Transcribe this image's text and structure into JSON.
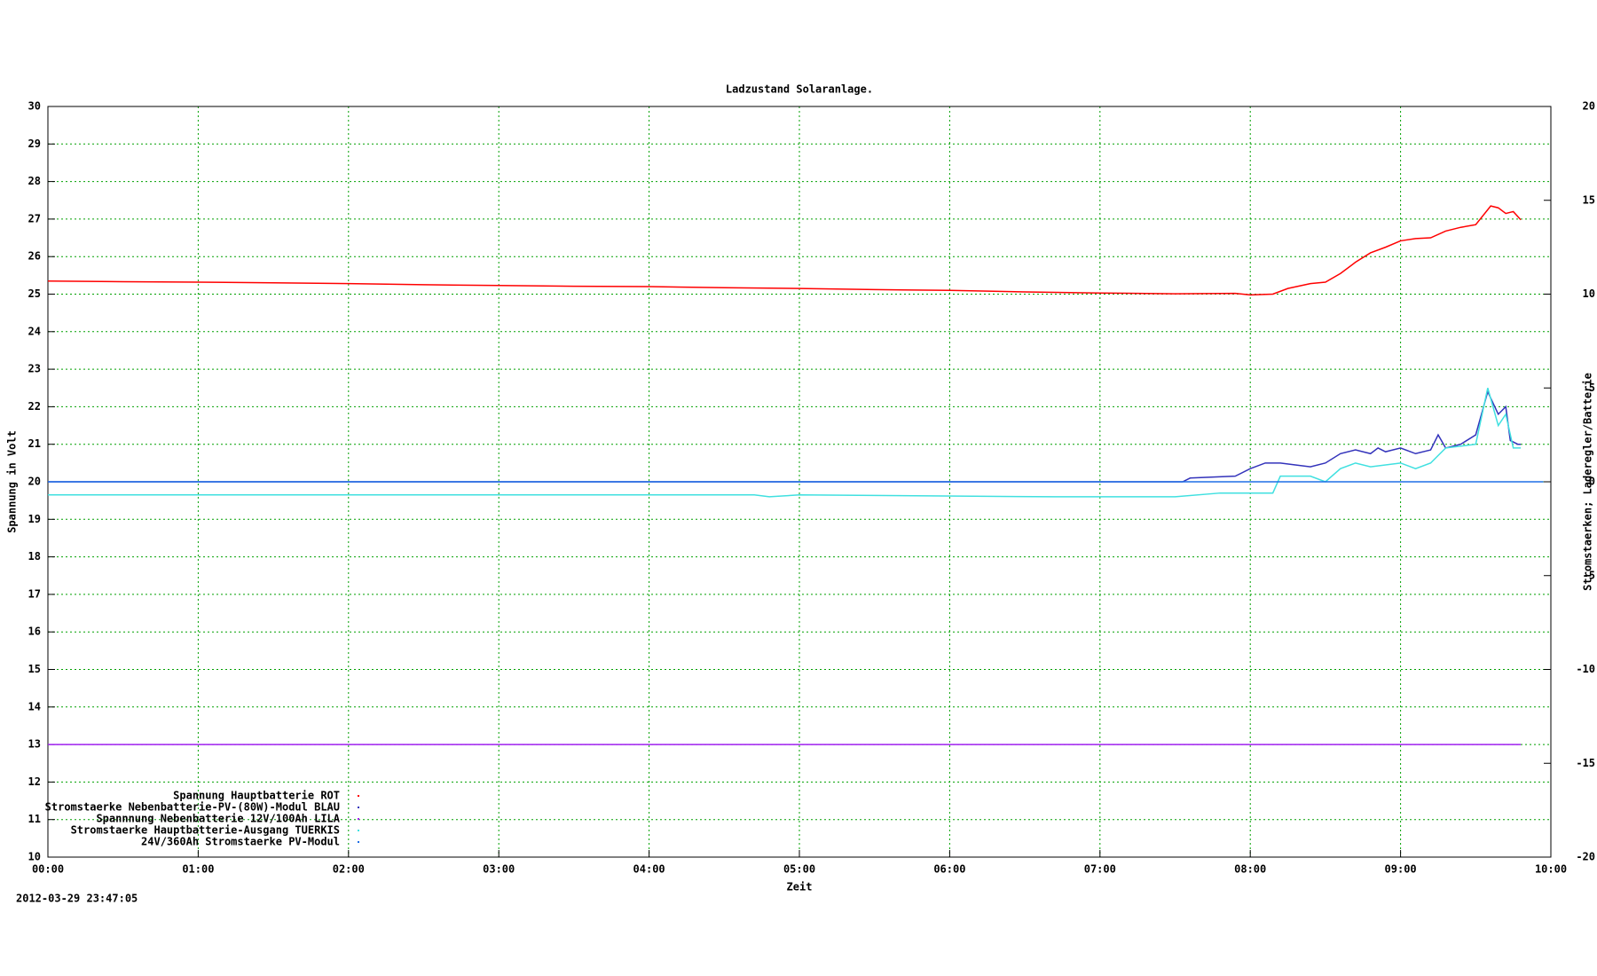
{
  "chart_data": {
    "type": "line",
    "title": "Ladzustand Solaranlage.",
    "xlabel": "Zeit",
    "ylabel": "Spannung in Volt",
    "y2label": "Stromstaerken; Laderegler/Batterie",
    "timestamp": "2012-03-29 23:47:05",
    "xlim": [
      0,
      10
    ],
    "xticks": [
      {
        "value": 0,
        "label": "00:00"
      },
      {
        "value": 1,
        "label": "01:00"
      },
      {
        "value": 2,
        "label": "02:00"
      },
      {
        "value": 3,
        "label": "03:00"
      },
      {
        "value": 4,
        "label": "04:00"
      },
      {
        "value": 5,
        "label": "05:00"
      },
      {
        "value": 6,
        "label": "06:00"
      },
      {
        "value": 7,
        "label": "07:00"
      },
      {
        "value": 8,
        "label": "08:00"
      },
      {
        "value": 9,
        "label": "09:00"
      },
      {
        "value": 10,
        "label": "10:00"
      }
    ],
    "ylim": [
      10,
      30
    ],
    "yticks": [
      10,
      11,
      12,
      13,
      14,
      15,
      16,
      17,
      18,
      19,
      20,
      21,
      22,
      23,
      24,
      25,
      26,
      27,
      28,
      29,
      30
    ],
    "y2lim": [
      -20,
      20
    ],
    "y2ticks": [
      -20,
      -15,
      -10,
      -5,
      0,
      5,
      10,
      15,
      20
    ],
    "grid": true,
    "legend": "bottom-left",
    "series": [
      {
        "name": "Spannung Hauptbatterie ROT",
        "color": "#ff0000",
        "x": [
          0,
          0.5,
          1,
          1.5,
          2,
          2.5,
          3,
          3.5,
          4,
          4.5,
          5,
          5.5,
          6,
          6.5,
          7,
          7.5,
          7.9,
          8,
          8.15,
          8.25,
          8.4,
          8.5,
          8.6,
          8.7,
          8.8,
          8.9,
          9,
          9.1,
          9.2,
          9.3,
          9.4,
          9.5,
          9.6,
          9.65,
          9.7,
          9.75,
          9.8
        ],
        "values": [
          25.35,
          25.33,
          25.32,
          25.3,
          25.28,
          25.25,
          25.23,
          25.21,
          25.2,
          25.17,
          25.15,
          25.12,
          25.1,
          25.06,
          25.03,
          25.01,
          25.02,
          24.98,
          25.0,
          25.15,
          25.28,
          25.32,
          25.55,
          25.85,
          26.1,
          26.25,
          26.42,
          26.48,
          26.5,
          26.68,
          26.78,
          26.85,
          27.35,
          27.3,
          27.15,
          27.2,
          26.98
        ]
      },
      {
        "name": "Stromstaerke Nebenbatterie-PV-(80W)-Modul BLAU",
        "color": "#3333bb",
        "axis": "y2",
        "x": [
          0,
          7.55,
          7.6,
          7.9,
          8.0,
          8.1,
          8.2,
          8.3,
          8.4,
          8.5,
          8.6,
          8.7,
          8.8,
          8.85,
          8.9,
          9.0,
          9.1,
          9.2,
          9.25,
          9.3,
          9.4,
          9.5,
          9.58,
          9.65,
          9.7,
          9.73,
          9.78,
          9.8
        ],
        "values": [
          0,
          0,
          0.2,
          0.3,
          0.7,
          1.0,
          1.0,
          0.9,
          0.8,
          1.0,
          1.5,
          1.7,
          1.5,
          1.8,
          1.6,
          1.8,
          1.5,
          1.7,
          2.5,
          1.8,
          2.0,
          2.5,
          4.8,
          3.6,
          4.0,
          2.2,
          2.0,
          2.0
        ]
      },
      {
        "name": "Spannnung Nebenbatterie 12V/100Ah LILA",
        "color": "#a020f0",
        "x": [
          0,
          9.8
        ],
        "values": [
          13.0,
          13.0
        ]
      },
      {
        "name": "Stromstaerke Hauptbatterie-Ausgang TUERKIS",
        "color": "#40e0e0",
        "axis": "y2",
        "x": [
          0,
          4.7,
          4.8,
          5.0,
          6.7,
          7.5,
          7.8,
          8.15,
          8.2,
          8.4,
          8.5,
          8.6,
          8.7,
          8.8,
          9.0,
          9.1,
          9.2,
          9.3,
          9.5,
          9.58,
          9.65,
          9.7,
          9.75,
          9.8
        ],
        "values": [
          -0.7,
          -0.7,
          -0.8,
          -0.7,
          -0.8,
          -0.8,
          -0.6,
          -0.6,
          0.3,
          0.3,
          0.0,
          0.7,
          1.0,
          0.8,
          1.0,
          0.7,
          1.0,
          1.8,
          2.0,
          5.0,
          3.0,
          3.6,
          1.8,
          1.8
        ]
      },
      {
        "name": "24V/360Ah Stromstaerke PV-Modul",
        "color": "#1e6ee6",
        "axis": "y2",
        "x": [
          0,
          9.95
        ],
        "values": [
          0,
          0
        ]
      }
    ]
  }
}
